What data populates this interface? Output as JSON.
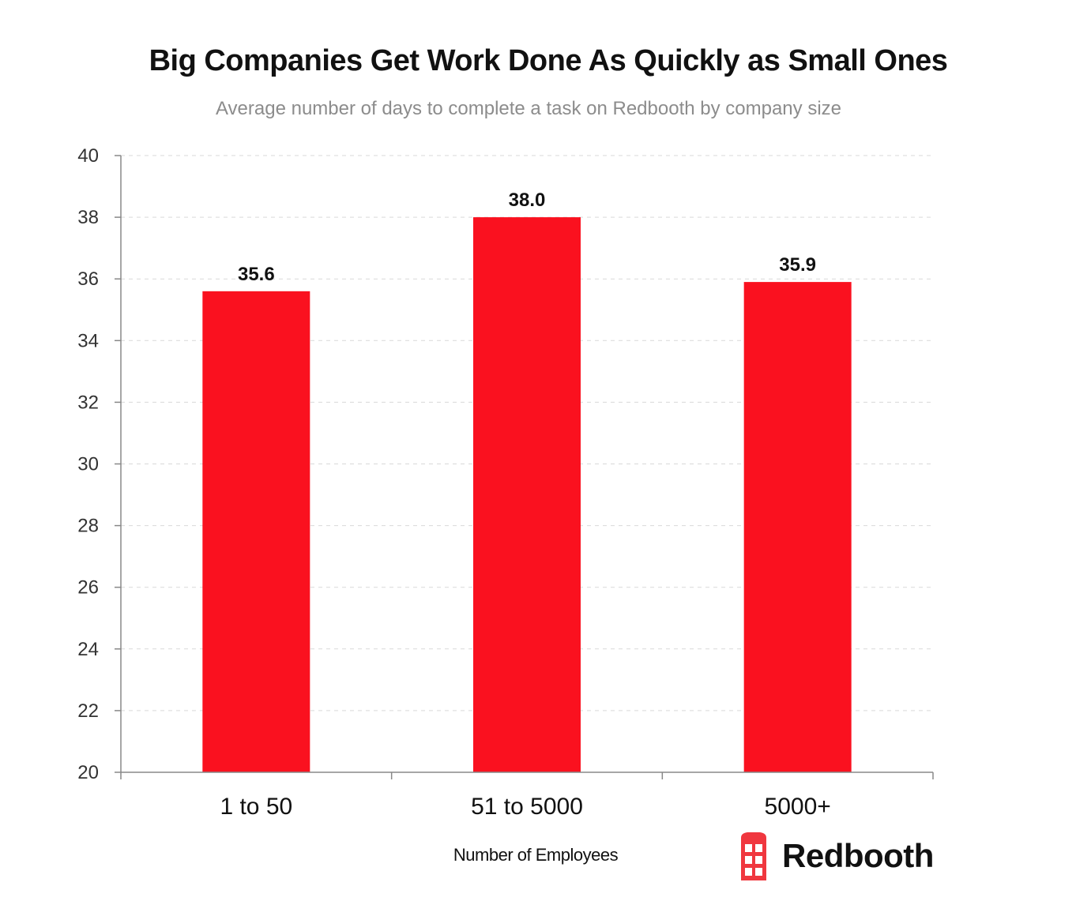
{
  "chart_data": {
    "type": "bar",
    "title": "Big Companies Get Work Done As Quickly as Small Ones",
    "subtitle": "Average number of days to complete a task on Redbooth by company size",
    "xlabel": "Number of Employees",
    "ylabel": "",
    "categories": [
      "1 to 50",
      "51 to 5000",
      "5000+"
    ],
    "values": [
      35.6,
      38.0,
      35.9
    ],
    "value_labels": [
      "35.6",
      "38.0",
      "35.9"
    ],
    "ylim": [
      20,
      40
    ],
    "yticks": [
      20,
      22,
      24,
      26,
      28,
      30,
      32,
      34,
      36,
      38,
      40
    ],
    "grid": true,
    "bar_color": "#fa111f"
  },
  "brand": {
    "name": "Redbooth",
    "icon": "phone-booth-icon",
    "color": "#f0373f"
  }
}
